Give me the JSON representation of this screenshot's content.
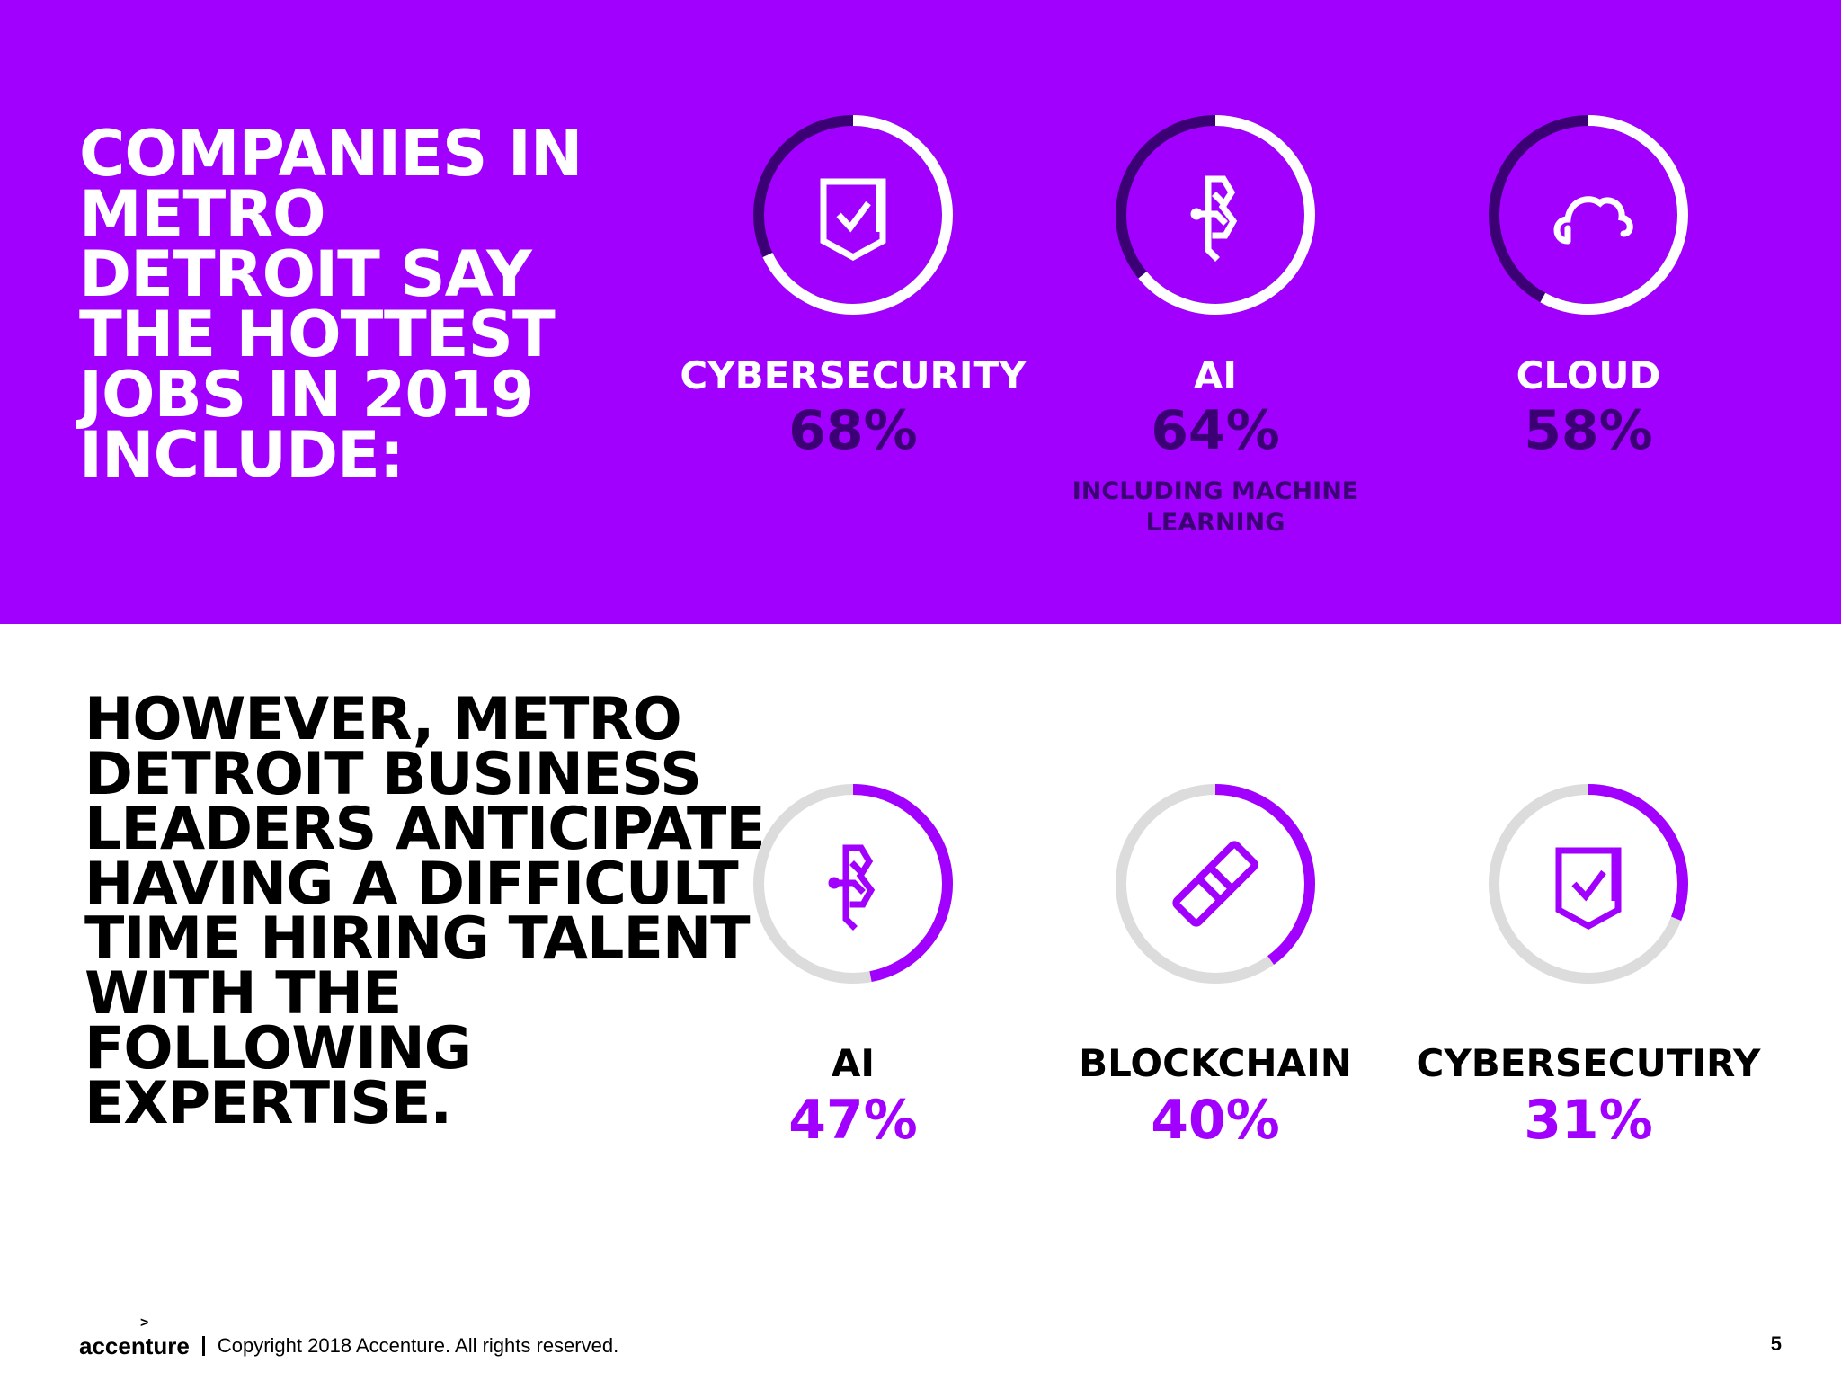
{
  "top_section": {
    "headline": "COMPANIES IN METRO DETROIT SAY THE HOTTEST JOBS IN 2019 INCLUDE:"
  },
  "bottom_section": {
    "headline": "HOWEVER, METRO DETROIT BUSINESS LEADERS ANTICIPATE HAVING A DIFFICULT TIME HIRING TALENT WITH THE FOLLOWING EXPERTISE."
  },
  "colors": {
    "purple": "#a100ff",
    "dark_purple": "#3b0073",
    "white": "#ffffff",
    "light_gray": "#dcdcdc",
    "black": "#000000"
  },
  "chart_data": [
    {
      "type": "donut",
      "items": [
        {
          "label": "CYBERSECURITY",
          "value": 68,
          "display": "68%",
          "icon": "shield-check-icon"
        },
        {
          "label": "AI",
          "value": 64,
          "display": "64%",
          "note": "INCLUDING MACHINE LEARNING",
          "icon": "ai-circuit-icon"
        },
        {
          "label": "CLOUD",
          "value": 58,
          "display": "58%",
          "icon": "cloud-icon"
        }
      ]
    },
    {
      "type": "donut",
      "items": [
        {
          "label": "AI",
          "value": 47,
          "display": "47%",
          "icon": "ai-circuit-icon"
        },
        {
          "label": "BLOCKCHAIN",
          "value": 40,
          "display": "40%",
          "icon": "chain-link-icon"
        },
        {
          "label": "CYBERSECUTIRY",
          "value": 31,
          "display": "31%",
          "icon": "shield-check-icon"
        }
      ]
    }
  ],
  "footer": {
    "brand": "accenture",
    "brand_mark": ">",
    "copyright": "Copyright 2018 Accenture. All rights reserved.",
    "page_number": "5"
  }
}
